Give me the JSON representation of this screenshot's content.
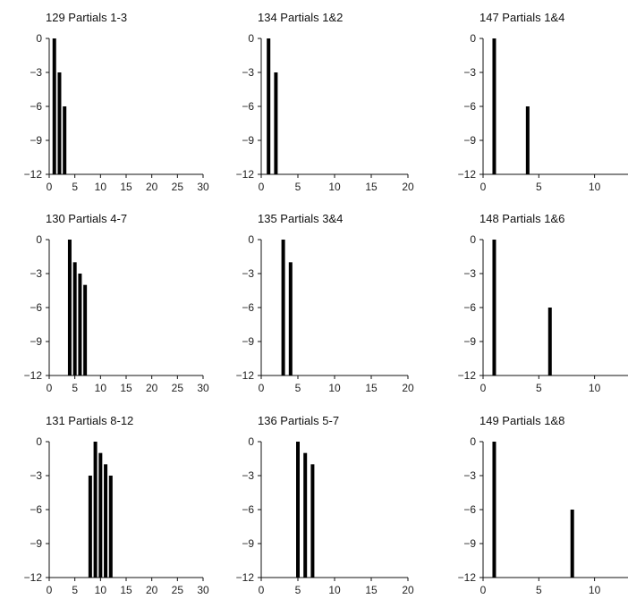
{
  "chart_data": [
    {
      "type": "bar",
      "title": "129 Partials 1-3",
      "x": [
        1,
        2,
        3
      ],
      "values": [
        0,
        -3,
        -6
      ],
      "xlim": [
        0,
        30
      ],
      "ylim": [
        -12,
        0
      ],
      "xticks": [
        0,
        5,
        10,
        15,
        20,
        25,
        30
      ],
      "yticks": [
        0,
        -3,
        -6,
        -9,
        -12
      ]
    },
    {
      "type": "bar",
      "title": "134 Partials 1&2",
      "x": [
        1,
        2
      ],
      "values": [
        0,
        -3
      ],
      "xlim": [
        0,
        20
      ],
      "ylim": [
        -12,
        0
      ],
      "xticks": [
        0,
        5,
        10,
        15,
        20
      ],
      "yticks": [
        0,
        -3,
        -6,
        -9,
        -12
      ]
    },
    {
      "type": "bar",
      "title": "147 Partials 1&4",
      "x": [
        1,
        4
      ],
      "values": [
        0,
        -6
      ],
      "xlim": [
        0,
        13
      ],
      "ylim": [
        -12,
        0
      ],
      "xticks": [
        0,
        5,
        10
      ],
      "yticks": [
        0,
        -3,
        -6,
        -9,
        -12
      ]
    },
    {
      "type": "bar",
      "title": "130 Partials 4-7",
      "x": [
        4,
        5,
        6,
        7
      ],
      "values": [
        0,
        -2,
        -3,
        -4
      ],
      "xlim": [
        0,
        30
      ],
      "ylim": [
        -12,
        0
      ],
      "xticks": [
        0,
        5,
        10,
        15,
        20,
        25,
        30
      ],
      "yticks": [
        0,
        -3,
        -6,
        -9,
        -12
      ]
    },
    {
      "type": "bar",
      "title": "135 Partials 3&4",
      "x": [
        3,
        4
      ],
      "values": [
        0,
        -2
      ],
      "xlim": [
        0,
        20
      ],
      "ylim": [
        -12,
        0
      ],
      "xticks": [
        0,
        5,
        10,
        15,
        20
      ],
      "yticks": [
        0,
        -3,
        -6,
        -9,
        -12
      ]
    },
    {
      "type": "bar",
      "title": "148 Partials 1&6",
      "x": [
        1,
        6
      ],
      "values": [
        0,
        -6
      ],
      "xlim": [
        0,
        13
      ],
      "ylim": [
        -12,
        0
      ],
      "xticks": [
        0,
        5,
        10
      ],
      "yticks": [
        0,
        -3,
        -6,
        -9,
        -12
      ]
    },
    {
      "type": "bar",
      "title": "131 Partials 8-12",
      "x": [
        8,
        9,
        10,
        11,
        12
      ],
      "values": [
        -3,
        0,
        -1,
        -2,
        -3
      ],
      "xlim": [
        0,
        30
      ],
      "ylim": [
        -12,
        0
      ],
      "xticks": [
        0,
        5,
        10,
        15,
        20,
        25,
        30
      ],
      "yticks": [
        0,
        -3,
        -6,
        -9,
        -12
      ]
    },
    {
      "type": "bar",
      "title": "136 Partials 5-7",
      "x": [
        5,
        6,
        7
      ],
      "values": [
        0,
        -1,
        -2
      ],
      "xlim": [
        0,
        20
      ],
      "ylim": [
        -12,
        0
      ],
      "xticks": [
        0,
        5,
        10,
        15,
        20
      ],
      "yticks": [
        0,
        -3,
        -6,
        -9,
        -12
      ]
    },
    {
      "type": "bar",
      "title": "149 Partials 1&8",
      "x": [
        1,
        8
      ],
      "values": [
        0,
        -6
      ],
      "xlim": [
        0,
        13
      ],
      "ylim": [
        -12,
        0
      ],
      "xticks": [
        0,
        5,
        10
      ],
      "yticks": [
        0,
        -3,
        -6,
        -9,
        -12
      ]
    }
  ]
}
